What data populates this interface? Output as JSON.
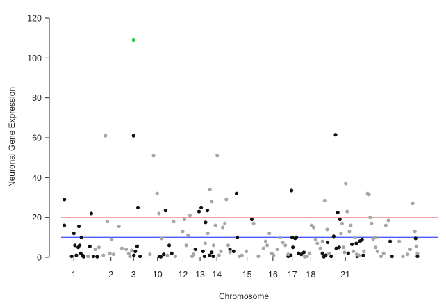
{
  "chart_data": {
    "type": "scatter",
    "xlabel": "Chromosome",
    "ylabel": "Neuronal Gene Expression",
    "ylim": [
      0,
      120
    ],
    "yticks": [
      0,
      20,
      40,
      60,
      80,
      100,
      120
    ],
    "grid": false,
    "legend": "none",
    "thresholds": [
      {
        "value": 20,
        "color": "#f4a0a8"
      },
      {
        "value": 10,
        "color": "#4d5cff"
      }
    ],
    "x_tick_labels": [
      {
        "label": "1",
        "pos": 0.031
      },
      {
        "label": "2",
        "pos": 0.133
      },
      {
        "label": "3",
        "pos": 0.195
      },
      {
        "label": "10",
        "pos": 0.261
      },
      {
        "label": "12",
        "pos": 0.331
      },
      {
        "label": "13",
        "pos": 0.378
      },
      {
        "label": "14",
        "pos": 0.424
      },
      {
        "label": "15",
        "pos": 0.507
      },
      {
        "label": "16",
        "pos": 0.578
      },
      {
        "label": "17",
        "pos": 0.631
      },
      {
        "label": "18",
        "pos": 0.682
      },
      {
        "label": "21",
        "pos": 0.777
      }
    ],
    "colors": {
      "black": "#111111",
      "gray": "#a6a6a6",
      "highlight": "#2ecc40"
    },
    "series": [
      {
        "color_key": "black",
        "points": [
          [
            0.005,
            29
          ],
          [
            0.005,
            16
          ],
          [
            0.025,
            0.5
          ],
          [
            0.031,
            12
          ],
          [
            0.034,
            6
          ],
          [
            0.038,
            1
          ],
          [
            0.043,
            5
          ],
          [
            0.045,
            15.5
          ],
          [
            0.047,
            6
          ],
          [
            0.05,
            2
          ],
          [
            0.052,
            10
          ],
          [
            0.055,
            1
          ],
          [
            0.058,
            0.3
          ],
          [
            0.07,
            0.5
          ],
          [
            0.075,
            5.5
          ],
          [
            0.079,
            22
          ],
          [
            0.085,
            0.5
          ],
          [
            0.095,
            0.3
          ],
          [
            0.195,
            61
          ],
          [
            0.196,
            1
          ],
          [
            0.2,
            3
          ],
          [
            0.205,
            5.5
          ],
          [
            0.207,
            25
          ],
          [
            0.213,
            0.5
          ],
          [
            0.266,
            0.5
          ],
          [
            0.27,
            0.3
          ],
          [
            0.278,
            1.5
          ],
          [
            0.283,
            23.5
          ],
          [
            0.293,
            6
          ],
          [
            0.3,
            2
          ],
          [
            0.365,
            4
          ],
          [
            0.375,
            23
          ],
          [
            0.381,
            25
          ],
          [
            0.386,
            3
          ],
          [
            0.39,
            0.5
          ],
          [
            0.393,
            17.5
          ],
          [
            0.398,
            23.5
          ],
          [
            0.404,
            1
          ],
          [
            0.41,
            2.5
          ],
          [
            0.414,
            0.5
          ],
          [
            0.46,
            4
          ],
          [
            0.47,
            3
          ],
          [
            0.478,
            32
          ],
          [
            0.48,
            10
          ],
          [
            0.52,
            19
          ],
          [
            0.62,
            0.5
          ],
          [
            0.627,
            1
          ],
          [
            0.629,
            33.5
          ],
          [
            0.631,
            10
          ],
          [
            0.633,
            5
          ],
          [
            0.639,
            9.5
          ],
          [
            0.642,
            10
          ],
          [
            0.648,
            2
          ],
          [
            0.656,
            1.5
          ],
          [
            0.663,
            2.5
          ],
          [
            0.666,
            0.5
          ],
          [
            0.714,
            2
          ],
          [
            0.718,
            0.3
          ],
          [
            0.723,
            1
          ],
          [
            0.728,
            7.5
          ],
          [
            0.738,
            0.5
          ],
          [
            0.745,
            10.5
          ],
          [
            0.75,
            61.5
          ],
          [
            0.752,
            4.5
          ],
          [
            0.756,
            22.5
          ],
          [
            0.76,
            5
          ],
          [
            0.762,
            19
          ],
          [
            0.785,
            2
          ],
          [
            0.795,
            6.5
          ],
          [
            0.807,
            7
          ],
          [
            0.81,
            0.5
          ],
          [
            0.816,
            8
          ],
          [
            0.82,
            8.5
          ],
          [
            0.823,
            9
          ],
          [
            0.826,
            1
          ],
          [
            0.9,
            8
          ],
          [
            0.905,
            0.5
          ],
          [
            0.97,
            9.5
          ],
          [
            0.975,
            0.5
          ]
        ]
      },
      {
        "color_key": "gray",
        "points": [
          [
            0.07,
            0.5
          ],
          [
            0.09,
            4
          ],
          [
            0.1,
            5
          ],
          [
            0.112,
            1
          ],
          [
            0.118,
            61
          ],
          [
            0.123,
            18
          ],
          [
            0.13,
            2
          ],
          [
            0.135,
            9
          ],
          [
            0.14,
            1.5
          ],
          [
            0.155,
            15.5
          ],
          [
            0.163,
            4.5
          ],
          [
            0.175,
            4
          ],
          [
            0.182,
            2
          ],
          [
            0.19,
            3.5
          ],
          [
            0.185,
            0.5
          ],
          [
            0.24,
            1.5
          ],
          [
            0.25,
            51
          ],
          [
            0.26,
            32
          ],
          [
            0.265,
            22
          ],
          [
            0.272,
            9.5
          ],
          [
            0.288,
            1
          ],
          [
            0.305,
            18
          ],
          [
            0.31,
            0.5
          ],
          [
            0.33,
            13
          ],
          [
            0.335,
            19
          ],
          [
            0.34,
            6
          ],
          [
            0.345,
            11
          ],
          [
            0.35,
            21
          ],
          [
            0.356,
            0.5
          ],
          [
            0.36,
            1.5
          ],
          [
            0.392,
            7
          ],
          [
            0.399,
            12
          ],
          [
            0.405,
            34
          ],
          [
            0.41,
            28
          ],
          [
            0.415,
            6
          ],
          [
            0.42,
            16
          ],
          [
            0.425,
            51
          ],
          [
            0.43,
            1
          ],
          [
            0.435,
            3
          ],
          [
            0.44,
            15
          ],
          [
            0.446,
            17
          ],
          [
            0.45,
            29
          ],
          [
            0.455,
            6
          ],
          [
            0.46,
            2.5
          ],
          [
            0.486,
            0.5
          ],
          [
            0.493,
            1
          ],
          [
            0.505,
            3
          ],
          [
            0.525,
            17
          ],
          [
            0.538,
            0.5
          ],
          [
            0.552,
            4.5
          ],
          [
            0.558,
            8
          ],
          [
            0.562,
            6
          ],
          [
            0.568,
            12
          ],
          [
            0.575,
            2
          ],
          [
            0.58,
            1
          ],
          [
            0.59,
            4
          ],
          [
            0.598,
            10
          ],
          [
            0.605,
            7.5
          ],
          [
            0.612,
            6
          ],
          [
            0.62,
            1.5
          ],
          [
            0.665,
            0.3
          ],
          [
            0.672,
            0.5
          ],
          [
            0.678,
            2
          ],
          [
            0.684,
            16
          ],
          [
            0.69,
            15
          ],
          [
            0.695,
            9
          ],
          [
            0.7,
            7
          ],
          [
            0.708,
            4.5
          ],
          [
            0.714,
            8
          ],
          [
            0.72,
            28.5
          ],
          [
            0.727,
            14
          ],
          [
            0.732,
            2
          ],
          [
            0.765,
            12
          ],
          [
            0.768,
            17
          ],
          [
            0.772,
            5
          ],
          [
            0.775,
            2.5
          ],
          [
            0.778,
            37
          ],
          [
            0.782,
            23
          ],
          [
            0.788,
            13
          ],
          [
            0.792,
            16
          ],
          [
            0.799,
            3
          ],
          [
            0.803,
            10
          ],
          [
            0.808,
            1.5
          ],
          [
            0.814,
            1
          ],
          [
            0.828,
            3
          ],
          [
            0.838,
            32
          ],
          [
            0.842,
            31.5
          ],
          [
            0.845,
            20
          ],
          [
            0.849,
            17
          ],
          [
            0.853,
            9
          ],
          [
            0.858,
            10
          ],
          [
            0.86,
            5
          ],
          [
            0.865,
            3
          ],
          [
            0.875,
            0.5
          ],
          [
            0.882,
            2
          ],
          [
            0.888,
            16
          ],
          [
            0.895,
            18.5
          ],
          [
            0.925,
            8
          ],
          [
            0.935,
            0.5
          ],
          [
            0.948,
            1.5
          ],
          [
            0.955,
            4
          ],
          [
            0.962,
            27
          ],
          [
            0.968,
            13
          ],
          [
            0.972,
            5.5
          ],
          [
            0.975,
            2
          ]
        ]
      },
      {
        "color_key": "highlight",
        "points": [
          [
            0.195,
            109
          ]
        ]
      }
    ]
  }
}
